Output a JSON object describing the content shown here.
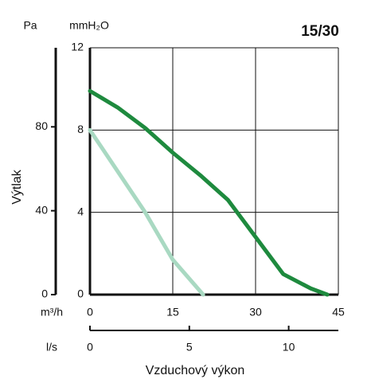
{
  "chart_data": {
    "type": "line",
    "title": "15/30",
    "ylabel": "Výtlak",
    "xlabel": "Vzduchový výkon",
    "y_unit": "mmH₂O",
    "y2_unit": "Pa",
    "x_unit": "m³/h",
    "x2_unit": "l/s",
    "xlim": [
      0,
      45
    ],
    "xticks": [
      0,
      15,
      30,
      45
    ],
    "ylim": [
      0,
      12
    ],
    "yticks": [
      0,
      4,
      8,
      12
    ],
    "y2lim": [
      0,
      117.7
    ],
    "y2ticks": [
      0,
      40,
      80
    ],
    "x2lim": [
      0,
      12.5
    ],
    "x2ticks": [
      0,
      5,
      10
    ],
    "grid": true,
    "series": [
      {
        "color": "#1e8a3e",
        "x": [
          0,
          5,
          10,
          15,
          20,
          25,
          30,
          35,
          40,
          43
        ],
        "values": [
          9.9,
          9.1,
          8.1,
          6.9,
          5.8,
          4.6,
          2.8,
          1.0,
          0.3,
          0
        ]
      },
      {
        "color": "#a9d9c2",
        "x": [
          0,
          5,
          10,
          15,
          20.5
        ],
        "values": [
          8,
          6,
          4,
          1.7,
          0
        ]
      }
    ]
  }
}
